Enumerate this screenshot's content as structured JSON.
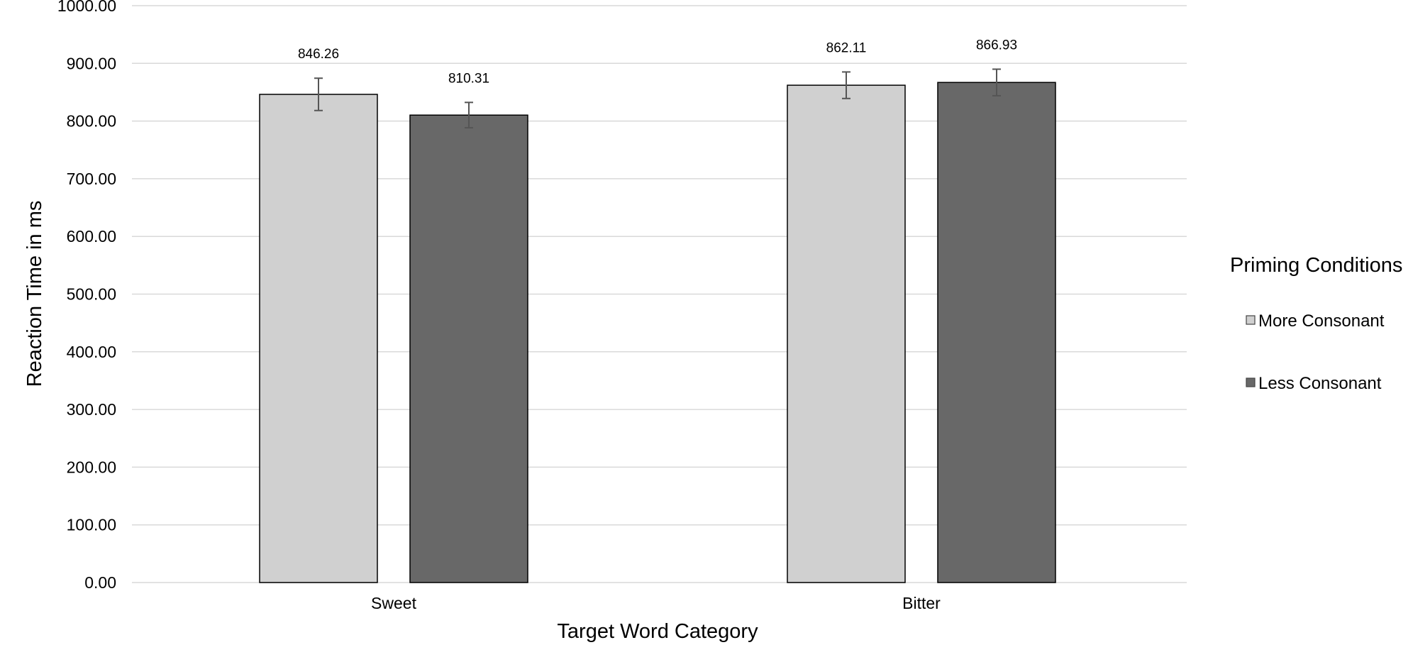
{
  "chart_data": {
    "type": "bar",
    "categories": [
      "Sweet",
      "Bitter"
    ],
    "series": [
      {
        "name": "More Consonant",
        "values": [
          846.26,
          862.11
        ],
        "errors": [
          28,
          23
        ],
        "color": "#d0d0d0"
      },
      {
        "name": "Less Consonant",
        "values": [
          810.31,
          866.93
        ],
        "errors": [
          22,
          23
        ],
        "color": "#686868"
      }
    ],
    "data_labels": [
      [
        "846.26",
        "862.11"
      ],
      [
        "810.31",
        "866.93"
      ]
    ],
    "xlabel": "Target Word Category",
    "ylabel": "Reaction Time in ms",
    "ylim": [
      0,
      1000
    ],
    "yticks": [
      0,
      100,
      200,
      300,
      400,
      500,
      600,
      700,
      800,
      900,
      1000
    ],
    "ytick_labels": [
      "0.00",
      "100.00",
      "200.00",
      "300.00",
      "400.00",
      "500.00",
      "600.00",
      "700.00",
      "800.00",
      "900.00",
      "1000.00"
    ],
    "grid": true,
    "error_bars": true,
    "legend": {
      "title": "Priming Conditions",
      "position": "right"
    },
    "bar_border_color": "#000000",
    "grid_color": "#d9d9d9",
    "error_bar_color": "#555555"
  }
}
